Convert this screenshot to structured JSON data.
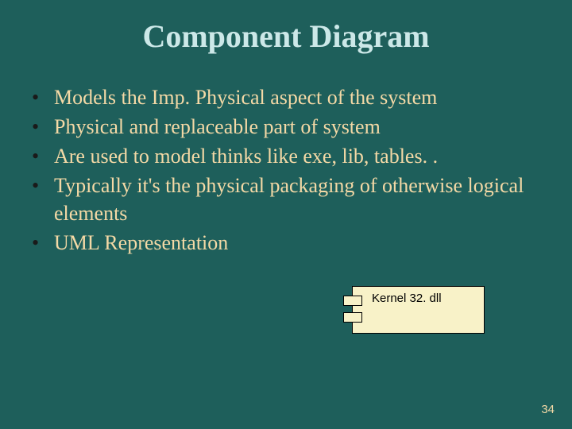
{
  "slide": {
    "title": "Component Diagram",
    "bullets": [
      "Models the Imp. Physical aspect of the system",
      "Physical and replaceable part of system",
      "Are used to model thinks like exe, lib, tables. .",
      "Typically it's the physical packaging of otherwise logical elements",
      "UML Representation"
    ],
    "component_label": "Kernel 32. dll",
    "page_number": "34"
  },
  "style": {
    "background_color": "#1e5f5b",
    "title_color": "#cce8e8",
    "title_fontsize": 40,
    "body_color": "#f4d9a6",
    "body_fontsize": 26,
    "bullet_mark_color": "#1a1a1a",
    "component_fill": "#f8f2c8",
    "component_border": "#000000",
    "component_label_fontsize": 15,
    "page_number_color": "#f4d9a6",
    "page_number_fontsize": 15
  }
}
